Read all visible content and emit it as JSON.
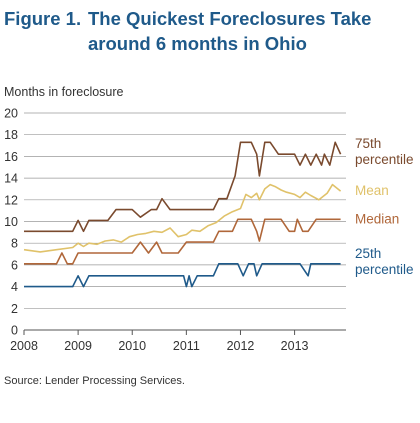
{
  "figure": {
    "label": "Figure 1.",
    "title_line1": "The Quickest Foreclosures Take",
    "title_line2": "around 6 months in Ohio"
  },
  "source": "Source: Lender Processing Services.",
  "colors": {
    "title": "#1f5a8a",
    "p75": "#7a4a2e",
    "mean": "#e0c26a",
    "median": "#b0673a",
    "p25": "#1f5a8a",
    "axis_text": "#333333",
    "gridline": "#9a9a9a"
  },
  "chart_data": {
    "type": "line",
    "ylabel": "Months in foreclosure",
    "xlabel": "",
    "xlim": [
      2008.0,
      2013.95
    ],
    "ylim": [
      0,
      20
    ],
    "y_ticks": [
      0,
      2,
      4,
      6,
      8,
      10,
      12,
      14,
      16,
      18,
      20
    ],
    "x_ticks": [
      2008,
      2009,
      2010,
      2011,
      2012,
      2013
    ],
    "x_tick_labels": [
      "2008",
      "2009",
      "2010",
      "2011",
      "2012",
      "2013"
    ],
    "grid": "horizontal",
    "series": [
      {
        "name": "75th percentile",
        "label_lines": [
          "75th",
          "percentile"
        ],
        "color_key": "p75",
        "x": [
          2008.0,
          2008.5,
          2008.9,
          2009.0,
          2009.1,
          2009.2,
          2009.3,
          2009.45,
          2009.55,
          2009.7,
          2009.85,
          2010.0,
          2010.15,
          2010.35,
          2010.45,
          2010.55,
          2010.7,
          2010.85,
          2011.0,
          2011.2,
          2011.4,
          2011.5,
          2011.6,
          2011.75,
          2011.9,
          2012.0,
          2012.05,
          2012.2,
          2012.3,
          2012.35,
          2012.45,
          2012.55,
          2012.7,
          2012.85,
          2013.0,
          2013.1,
          2013.2,
          2013.3,
          2013.4,
          2013.5,
          2013.55,
          2013.65,
          2013.75,
          2013.85
        ],
        "y": [
          9.1,
          9.1,
          9.1,
          10.1,
          9.1,
          10.1,
          10.1,
          10.1,
          10.1,
          11.1,
          11.1,
          11.1,
          10.4,
          11.1,
          11.1,
          12.1,
          11.1,
          11.1,
          11.1,
          11.1,
          11.1,
          11.1,
          12.1,
          12.1,
          14.2,
          17.3,
          17.3,
          17.3,
          16.2,
          14.2,
          17.3,
          17.3,
          16.2,
          16.2,
          16.2,
          15.2,
          16.2,
          15.2,
          16.2,
          15.2,
          16.2,
          15.2,
          17.3,
          16.2
        ]
      },
      {
        "name": "Mean",
        "label_lines": [
          "Mean"
        ],
        "color_key": "mean",
        "x": [
          2008.0,
          2008.3,
          2008.6,
          2008.9,
          2009.0,
          2009.1,
          2009.2,
          2009.35,
          2009.5,
          2009.65,
          2009.8,
          2009.95,
          2010.1,
          2010.25,
          2010.4,
          2010.55,
          2010.7,
          2010.85,
          2011.0,
          2011.1,
          2011.25,
          2011.4,
          2011.55,
          2011.7,
          2011.85,
          2012.0,
          2012.1,
          2012.2,
          2012.3,
          2012.35,
          2012.45,
          2012.55,
          2012.65,
          2012.75,
          2012.85,
          2013.0,
          2013.1,
          2013.2,
          2013.3,
          2013.45,
          2013.6,
          2013.7,
          2013.85
        ],
        "y": [
          7.4,
          7.2,
          7.4,
          7.6,
          8.0,
          7.7,
          8.0,
          7.9,
          8.2,
          8.3,
          8.1,
          8.6,
          8.8,
          8.9,
          9.1,
          9.0,
          9.4,
          8.6,
          8.8,
          9.2,
          9.1,
          9.6,
          9.9,
          10.5,
          10.9,
          11.2,
          12.5,
          12.2,
          12.6,
          12.0,
          13.0,
          13.4,
          13.2,
          12.9,
          12.7,
          12.5,
          12.2,
          12.7,
          12.4,
          12.0,
          12.6,
          13.4,
          12.8
        ]
      },
      {
        "name": "Median",
        "label_lines": [
          "Median"
        ],
        "color_key": "median",
        "x": [
          2008.0,
          2008.3,
          2008.6,
          2008.7,
          2008.8,
          2008.9,
          2009.0,
          2009.1,
          2009.3,
          2009.5,
          2009.7,
          2009.9,
          2010.0,
          2010.15,
          2010.3,
          2010.45,
          2010.55,
          2010.7,
          2010.85,
          2011.0,
          2011.2,
          2011.4,
          2011.5,
          2011.6,
          2011.75,
          2011.85,
          2011.95,
          2012.0,
          2012.1,
          2012.2,
          2012.3,
          2012.35,
          2012.45,
          2012.6,
          2012.75,
          2012.9,
          2013.0,
          2013.05,
          2013.15,
          2013.25,
          2013.4,
          2013.5,
          2013.6,
          2013.75,
          2013.85
        ],
        "y": [
          6.1,
          6.1,
          6.1,
          7.1,
          6.1,
          6.1,
          7.1,
          7.1,
          7.1,
          7.1,
          7.1,
          7.1,
          7.1,
          8.1,
          7.1,
          8.1,
          7.1,
          7.1,
          7.1,
          8.1,
          8.1,
          8.1,
          8.1,
          9.1,
          9.1,
          9.1,
          10.2,
          10.2,
          10.2,
          10.2,
          9.1,
          8.2,
          10.2,
          10.2,
          10.2,
          9.1,
          9.1,
          10.2,
          9.1,
          9.1,
          10.2,
          10.2,
          10.2,
          10.2,
          10.2
        ]
      },
      {
        "name": "25th percentile",
        "label_lines": [
          "25th",
          "percentile"
        ],
        "color_key": "p25",
        "x": [
          2008.0,
          2008.5,
          2008.9,
          2009.0,
          2009.1,
          2009.2,
          2009.3,
          2009.5,
          2009.7,
          2009.9,
          2010.0,
          2010.3,
          2010.6,
          2010.8,
          2010.95,
          2011.0,
          2011.05,
          2011.1,
          2011.2,
          2011.4,
          2011.5,
          2011.6,
          2011.8,
          2011.95,
          2012.05,
          2012.15,
          2012.25,
          2012.3,
          2012.4,
          2012.5,
          2012.6,
          2012.75,
          2012.9,
          2013.0,
          2013.1,
          2013.25,
          2013.3,
          2013.4,
          2013.55,
          2013.7,
          2013.85
        ],
        "y": [
          4.0,
          4.0,
          4.0,
          5.0,
          4.0,
          5.0,
          5.0,
          5.0,
          5.0,
          5.0,
          5.0,
          5.0,
          5.0,
          5.0,
          5.0,
          4.0,
          5.0,
          4.0,
          5.0,
          5.0,
          5.0,
          6.1,
          6.1,
          6.1,
          5.0,
          6.1,
          6.1,
          5.0,
          6.1,
          6.1,
          6.1,
          6.1,
          6.1,
          6.1,
          6.1,
          5.0,
          6.1,
          6.1,
          6.1,
          6.1,
          6.1
        ]
      }
    ]
  }
}
